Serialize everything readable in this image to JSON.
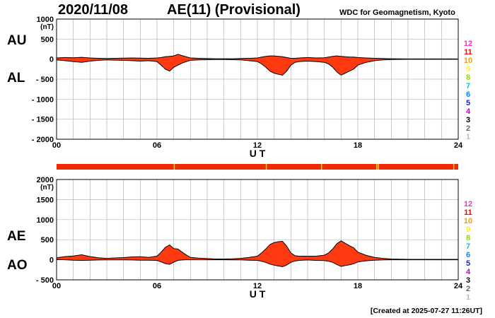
{
  "header": {
    "date": "2020/11/08",
    "title": "AE(11) (Provisional)",
    "organization": "WDC for Geomagnetism, Kyoto"
  },
  "footer": {
    "created": "[Created at 2025-07-27 11:26UT]"
  },
  "colors": {
    "fill": "#ff3a10",
    "line": "#000000",
    "grid": "#b4b4b4",
    "bar": "#ee2a00"
  },
  "station_legend": {
    "counts": [
      "12",
      "11",
      "10",
      "9",
      "8",
      "7",
      "6",
      "5",
      "4",
      "3",
      "2",
      "1"
    ],
    "colors": [
      "#ff2ad4",
      "#ff0000",
      "#ff9900",
      "#ffee22",
      "#88dd00",
      "#00cccc",
      "#0088ff",
      "#2020cc",
      "#cc00cc",
      "#000000",
      "#666666",
      "#bbbbbb"
    ]
  },
  "chart_data": [
    {
      "type": "area",
      "panel": "AU/AL",
      "series_labels": [
        "AU",
        "AL"
      ],
      "ylabel": "(nT)",
      "xlabel": "U T",
      "ylim": [
        -2000,
        1000
      ],
      "yticks": [
        1000,
        500,
        0,
        -500,
        -1000,
        -1500,
        -2000
      ],
      "ytick_labels": [
        "1000",
        "500",
        "0",
        "- 500",
        "- 1000",
        "- 1500",
        "- 2000"
      ],
      "xlim": [
        0,
        24
      ],
      "xticks": [
        0,
        6,
        12,
        18,
        24
      ],
      "xtick_labels": [
        "00",
        "06",
        "12",
        "18",
        "24"
      ],
      "x": [
        0,
        0.5,
        1,
        1.5,
        2,
        2.5,
        3,
        3.5,
        4,
        4.5,
        5,
        5.5,
        6,
        6.25,
        6.5,
        6.75,
        7,
        7.25,
        7.5,
        7.75,
        8,
        8.5,
        9,
        9.5,
        10,
        10.5,
        11,
        11.5,
        12,
        12.25,
        12.5,
        12.75,
        13,
        13.25,
        13.5,
        13.75,
        14,
        14.25,
        14.5,
        15,
        15.5,
        16,
        16.25,
        16.5,
        16.75,
        17,
        17.25,
        17.5,
        17.75,
        18,
        18.5,
        19,
        19.5,
        20,
        21,
        22,
        23,
        24
      ],
      "upper": [
        30,
        40,
        35,
        45,
        30,
        20,
        15,
        20,
        25,
        30,
        25,
        20,
        30,
        40,
        60,
        70,
        80,
        120,
        90,
        60,
        30,
        20,
        15,
        10,
        10,
        10,
        15,
        20,
        30,
        50,
        70,
        80,
        80,
        70,
        60,
        40,
        20,
        20,
        30,
        40,
        30,
        35,
        50,
        70,
        80,
        70,
        60,
        50,
        50,
        40,
        30,
        20,
        15,
        10,
        5,
        5,
        5,
        5
      ],
      "lower": [
        -20,
        -40,
        -60,
        -80,
        -50,
        -30,
        -20,
        -25,
        -30,
        -40,
        -50,
        -40,
        -60,
        -150,
        -250,
        -300,
        -200,
        -150,
        -100,
        -60,
        -30,
        -20,
        -15,
        -10,
        -10,
        -15,
        -20,
        -40,
        -60,
        -120,
        -200,
        -300,
        -350,
        -380,
        -400,
        -300,
        -150,
        -80,
        -60,
        -50,
        -60,
        -80,
        -120,
        -200,
        -320,
        -400,
        -350,
        -300,
        -250,
        -150,
        -80,
        -40,
        -20,
        -10,
        -5,
        -5,
        -5,
        -5
      ]
    },
    {
      "type": "area",
      "panel": "AE/AO",
      "series_labels": [
        "AE",
        "AO"
      ],
      "ylabel": "(nT)",
      "xlabel": "U T",
      "ylim": [
        -500,
        2000
      ],
      "yticks": [
        2000,
        1500,
        1000,
        500,
        0,
        -500
      ],
      "ytick_labels": [
        "2000",
        "1500",
        "1000",
        "500",
        "0",
        "- 500"
      ],
      "xlim": [
        0,
        24
      ],
      "xticks": [
        0,
        6,
        12,
        18,
        24
      ],
      "xtick_labels": [
        "00",
        "06",
        "12",
        "18",
        "24"
      ],
      "x": [
        0,
        0.5,
        1,
        1.5,
        2,
        2.5,
        3,
        3.5,
        4,
        4.5,
        5,
        5.5,
        6,
        6.25,
        6.5,
        6.75,
        7,
        7.25,
        7.5,
        7.75,
        8,
        8.5,
        9,
        9.5,
        10,
        10.5,
        11,
        11.5,
        12,
        12.25,
        12.5,
        12.75,
        13,
        13.25,
        13.5,
        13.75,
        14,
        14.25,
        14.5,
        15,
        15.5,
        16,
        16.25,
        16.5,
        16.75,
        17,
        17.25,
        17.5,
        17.75,
        18,
        18.5,
        19,
        19.5,
        20,
        21,
        22,
        23,
        24
      ],
      "upper": [
        50,
        80,
        95,
        125,
        80,
        50,
        35,
        45,
        55,
        70,
        75,
        60,
        90,
        190,
        310,
        370,
        280,
        270,
        190,
        120,
        60,
        40,
        30,
        20,
        20,
        25,
        35,
        60,
        90,
        170,
        270,
        380,
        430,
        450,
        460,
        340,
        170,
        100,
        90,
        90,
        90,
        115,
        170,
        270,
        400,
        470,
        410,
        350,
        300,
        190,
        110,
        60,
        35,
        20,
        10,
        10,
        10,
        10
      ],
      "lower": [
        5,
        0,
        -10,
        -15,
        -10,
        -5,
        -3,
        -3,
        -3,
        -5,
        -10,
        -10,
        -15,
        -55,
        -95,
        -115,
        -60,
        -15,
        -5,
        0,
        0,
        0,
        0,
        0,
        0,
        -3,
        -3,
        -10,
        -15,
        -35,
        -65,
        -110,
        -135,
        -155,
        -170,
        -130,
        -65,
        -30,
        -15,
        -5,
        -15,
        -20,
        -35,
        -65,
        -120,
        -165,
        -145,
        -125,
        -100,
        -55,
        -25,
        -10,
        -3,
        0,
        0,
        0,
        0,
        0
      ]
    }
  ]
}
